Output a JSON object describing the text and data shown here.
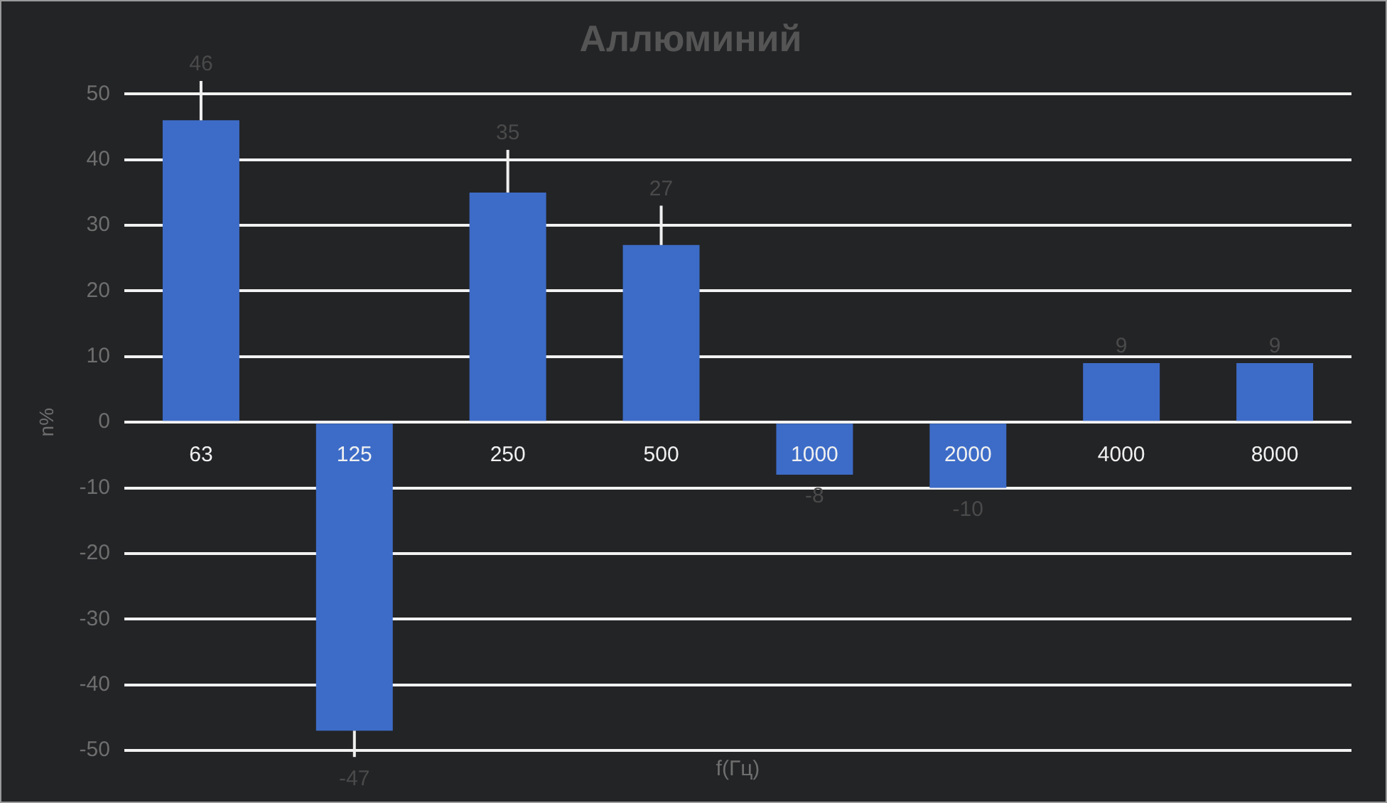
{
  "chart_data": {
    "type": "bar",
    "title": "Аллюминий",
    "xlabel": "f(Гц)",
    "ylabel": "n%",
    "categories": [
      "63",
      "125",
      "250",
      "500",
      "1000",
      "2000",
      "4000",
      "8000"
    ],
    "values": [
      46,
      -47,
      35,
      27,
      -8,
      -10,
      9,
      9
    ],
    "errors": [
      [
        46,
        52
      ],
      [
        -51,
        -47
      ],
      [
        35,
        41.5
      ],
      [
        27,
        33
      ],
      null,
      null,
      null,
      null
    ],
    "color": "#3d6cc8",
    "ylim": [
      -50,
      50
    ],
    "yticks": [
      -50,
      -40,
      -30,
      -20,
      -10,
      0,
      10,
      20,
      30,
      40,
      50
    ],
    "grid": "y",
    "legend": false,
    "data_labels": true
  }
}
